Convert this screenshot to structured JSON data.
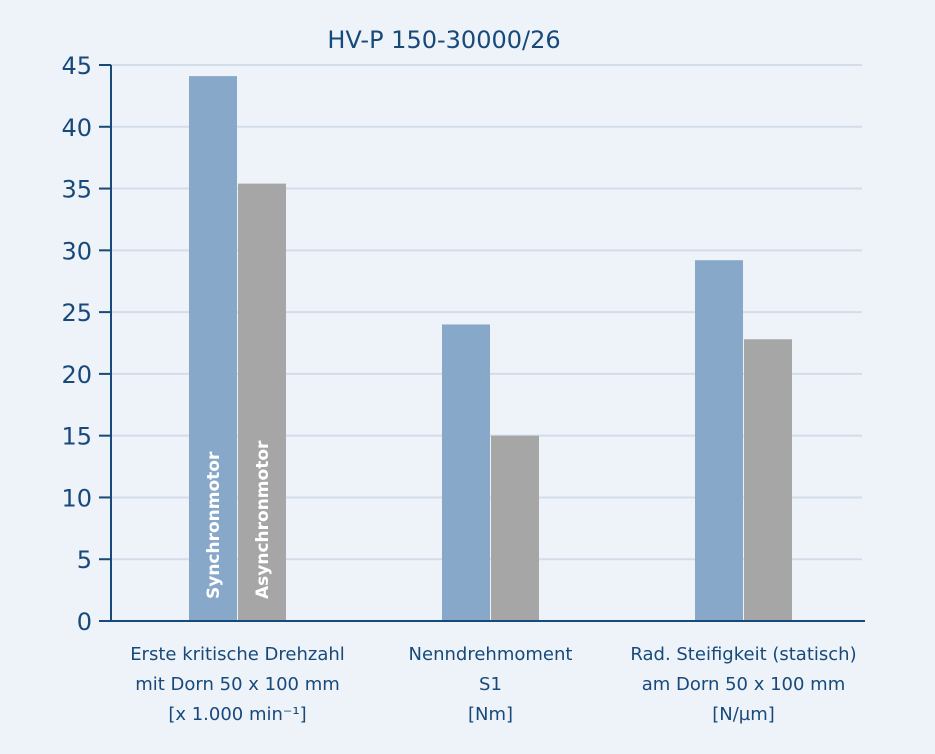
{
  "chart_data": {
    "type": "bar",
    "title": "HV-P 150-30000/26",
    "categories": [
      [
        "Erste kritische Drehzahl",
        "mit Dorn 50 x 100 mm",
        "[x 1.000 min⁻¹]"
      ],
      [
        "Nenndrehmoment",
        "S1",
        "[Nm]"
      ],
      [
        "Rad. Steifigkeit (statisch)",
        "am Dorn 50 x 100 mm",
        "[N/µm]"
      ]
    ],
    "series": [
      {
        "name": "Synchronmotor",
        "values": [
          44.1,
          24.0,
          29.2
        ],
        "color": "#88a8ca"
      },
      {
        "name": "Asynchronmotor",
        "values": [
          35.4,
          15.0,
          22.8
        ],
        "color": "#a6a6a6"
      }
    ],
    "ylim": [
      0,
      45
    ],
    "yticks": [
      0,
      5,
      10,
      15,
      20,
      25,
      30,
      35,
      40,
      45
    ],
    "grid": true,
    "legend": "inside first bars (vertical labels)",
    "colors": {
      "background": "#eef3f9",
      "text": "#17497a",
      "grid": "#d3dde9"
    }
  }
}
